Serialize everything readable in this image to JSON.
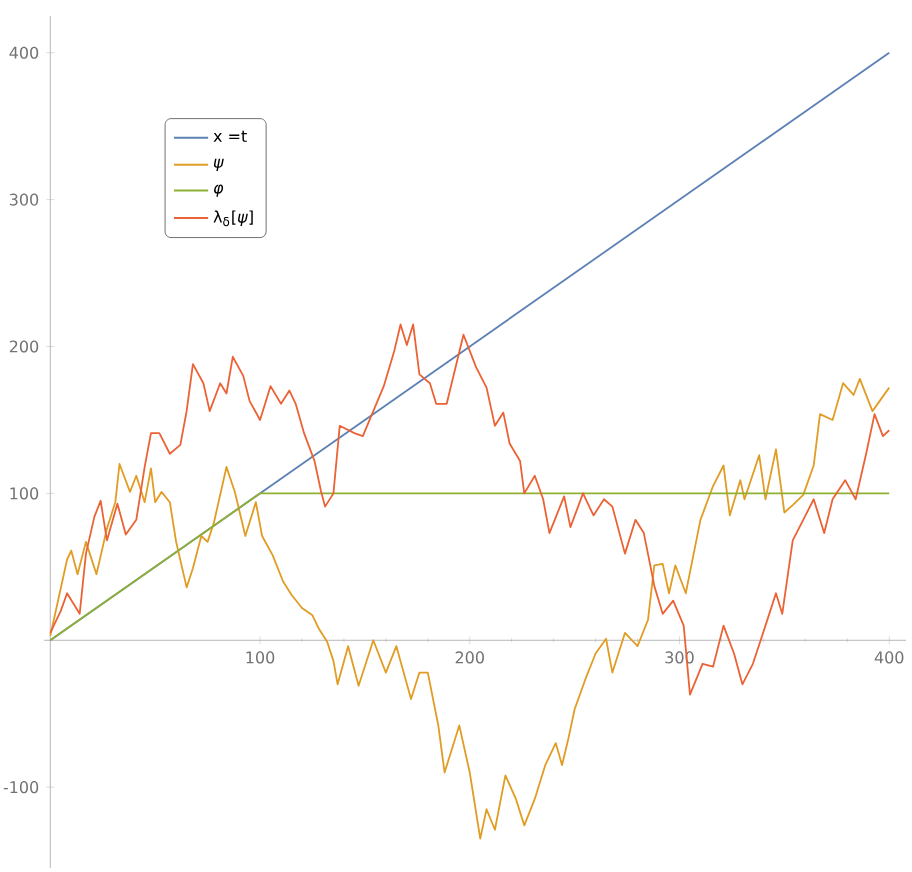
{
  "chart_data": {
    "type": "line",
    "xlim": [
      -3,
      408
    ],
    "ylim": [
      -155,
      425
    ],
    "xticks": [
      100,
      200,
      300,
      400
    ],
    "yticks": [
      -100,
      100,
      200,
      300,
      400
    ],
    "legend": "top left",
    "marker": "none",
    "line_style": "solid",
    "grid": false,
    "series": [
      {
        "name": "x =t",
        "color": "#5e81b5",
        "x": [
          0,
          400
        ],
        "values": [
          0,
          400
        ]
      },
      {
        "name": "*ψ*",
        "color": "#e19c24",
        "x": [
          0,
          8,
          10,
          13,
          17,
          22,
          27,
          31,
          33,
          38,
          41,
          45,
          48,
          50,
          53,
          57,
          60,
          65,
          68,
          72,
          75,
          78,
          84,
          88,
          93,
          98,
          101,
          106,
          111,
          115,
          120,
          125,
          128,
          132,
          135,
          137,
          142,
          147,
          154,
          160,
          165,
          172,
          176,
          180,
          185,
          188,
          195,
          200,
          205,
          208,
          212,
          217,
          222,
          226,
          231,
          236,
          241,
          244,
          247,
          250,
          255,
          260,
          265,
          268,
          274,
          280,
          285,
          288,
          292,
          295,
          298,
          303,
          310,
          316,
          321,
          324,
          329,
          331,
          338,
          341,
          346,
          350,
          354,
          359,
          364,
          367,
          373,
          378,
          383,
          386,
          392,
          400
        ],
        "values": [
          3,
          55,
          61,
          45,
          67,
          45,
          76,
          94,
          120,
          101,
          112,
          94,
          117,
          94,
          101,
          94,
          67,
          36,
          49,
          71,
          67,
          80,
          118,
          101,
          71,
          94,
          71,
          58,
          40,
          31,
          22,
          17,
          8,
          -1,
          -14,
          -30,
          -4,
          -31,
          0,
          -22,
          -4,
          -40,
          -22,
          -22,
          -58,
          -90,
          -58,
          -90,
          -135,
          -115,
          -129,
          -92,
          -108,
          -126,
          -108,
          -85,
          -70,
          -85,
          -67,
          -47,
          -27,
          -9,
          1,
          -22,
          5,
          -4,
          14,
          51,
          52,
          32,
          51,
          32,
          82,
          105,
          119,
          85,
          109,
          96,
          126,
          96,
          130,
          87,
          92,
          99,
          119,
          154,
          150,
          175,
          167,
          178,
          156,
          172
        ]
      },
      {
        "name": "*φ*",
        "color": "#8fb032",
        "x": [
          0,
          100,
          400
        ],
        "values": [
          0,
          100,
          100
        ]
      },
      {
        "name": "λ$_{δ}$[*ψ*]",
        "color": "#eb6235",
        "x": [
          0,
          5,
          8,
          14,
          17,
          21,
          24,
          27,
          32,
          36,
          41,
          45,
          48,
          52,
          57,
          62,
          65,
          68,
          73,
          76,
          81,
          84,
          87,
          92,
          95,
          100,
          105,
          110,
          114,
          117,
          121,
          126,
          129,
          131,
          135,
          138,
          145,
          149,
          154,
          159,
          164,
          167,
          170,
          173,
          176,
          181,
          184,
          189,
          197,
          203,
          208,
          212,
          216,
          219,
          224,
          226,
          231,
          235,
          238,
          245,
          248,
          254,
          259,
          264,
          268,
          274,
          279,
          283,
          288,
          292,
          297,
          302,
          305,
          311,
          316,
          321,
          326,
          330,
          335,
          341,
          346,
          349,
          354,
          359,
          364,
          369,
          373,
          379,
          384,
          389,
          393,
          397,
          400
        ],
        "values": [
          5,
          20,
          32,
          18,
          59,
          84,
          95,
          68,
          93,
          72,
          82,
          118,
          141,
          141,
          127,
          133,
          156,
          188,
          175,
          156,
          175,
          168,
          193,
          180,
          163,
          150,
          173,
          161,
          170,
          161,
          141,
          122,
          102,
          91,
          100,
          146,
          141,
          139,
          156,
          173,
          197,
          215,
          201,
          215,
          181,
          175,
          161,
          161,
          208,
          186,
          172,
          146,
          155,
          134,
          122,
          100,
          112,
          96,
          73,
          98,
          77,
          100,
          85,
          96,
          91,
          59,
          82,
          73,
          37,
          18,
          27,
          10,
          -37,
          -16,
          -18,
          10,
          -9,
          -30,
          -16,
          10,
          32,
          18,
          68,
          82,
          96,
          73,
          96,
          109,
          96,
          127,
          154,
          139,
          143
        ]
      }
    ]
  }
}
